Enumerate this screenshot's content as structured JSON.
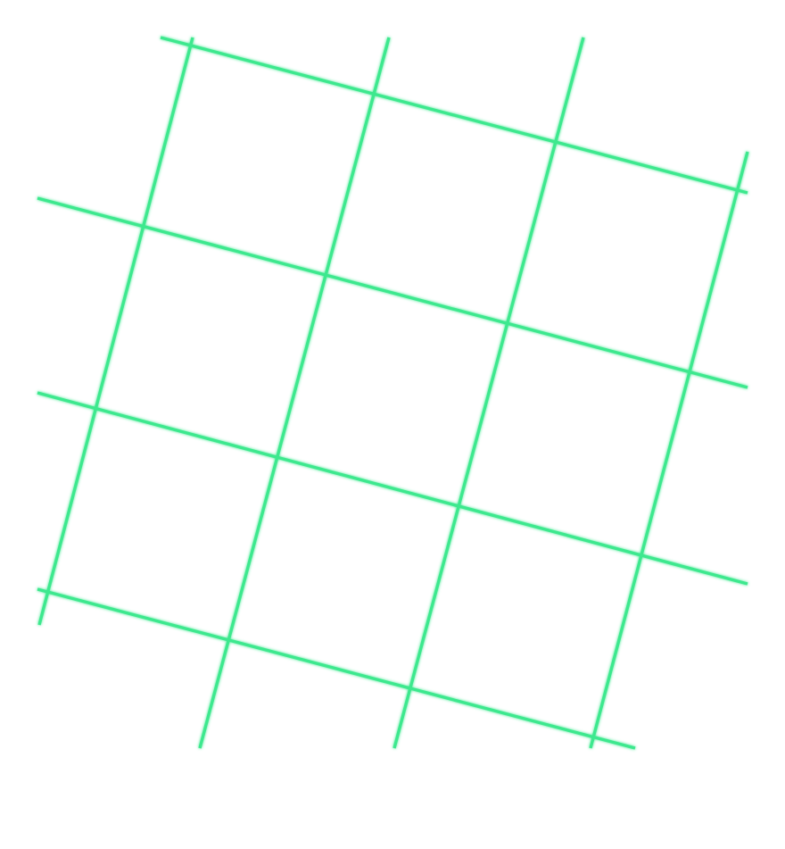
{
  "image": {
    "description_tag": "green-grid-overlay",
    "background_color": "#ffffff",
    "line_color": "#3ee88e",
    "glow_color": "#7ff5b5"
  }
}
